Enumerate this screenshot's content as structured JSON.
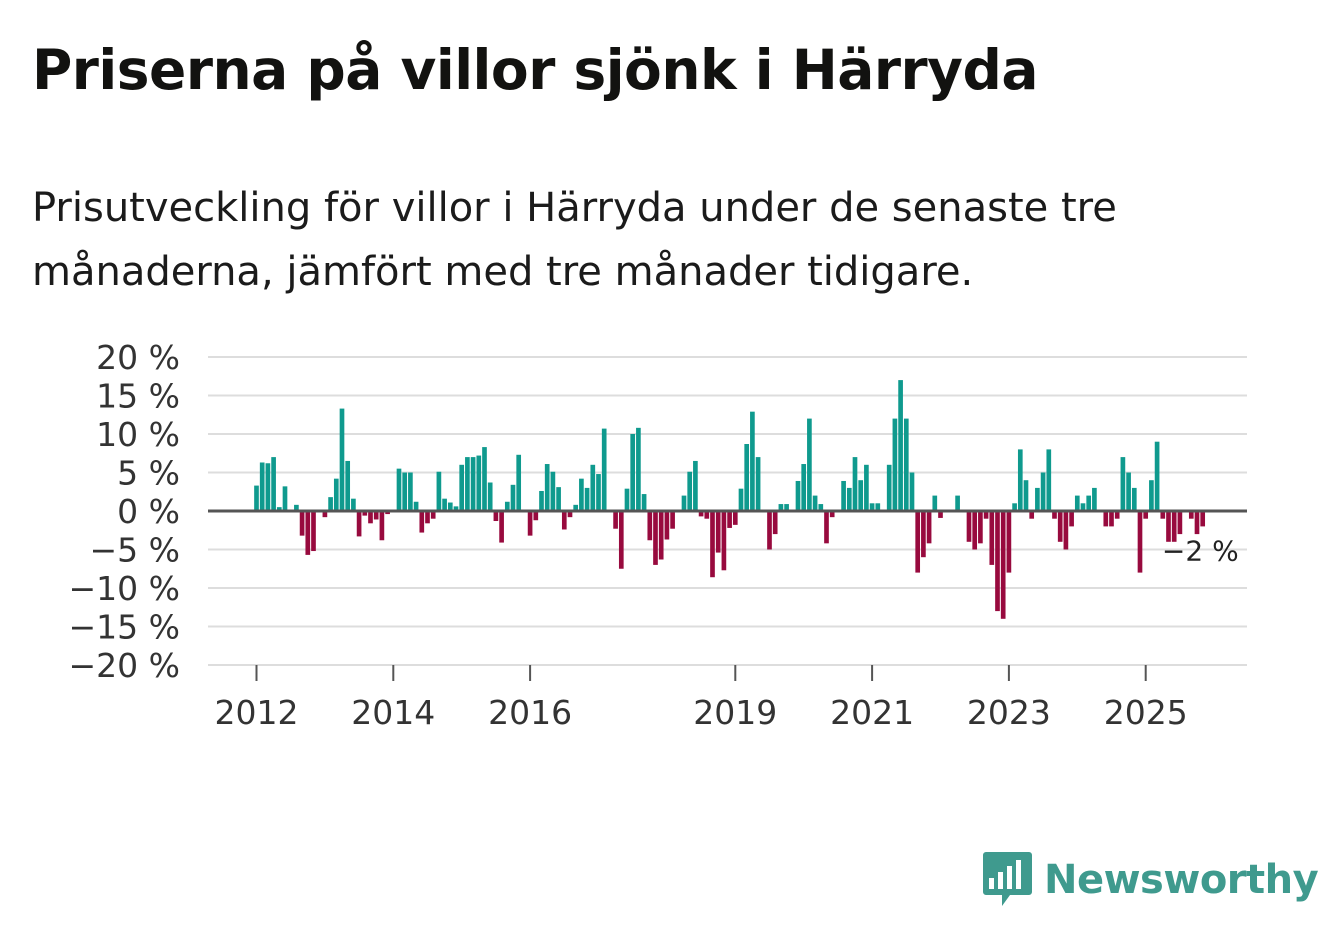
{
  "title": "Priserna på villor sjönk i Härryda",
  "subtitle": "Prisutveckling för villor i Härryda under de senaste tre månaderna, jämfört med tre månader tidigare.",
  "brand": {
    "name": "Newsworthy",
    "color": "#3f9a8e"
  },
  "colors": {
    "positive": "#0f9a8e",
    "negative": "#980a3e",
    "grid": "#dddddd",
    "zero_line": "#555555"
  },
  "chart_data": {
    "type": "bar",
    "title": "Priserna på villor sjönk i Härryda",
    "xlabel": "",
    "ylabel": "",
    "ylim": [
      -20,
      20
    ],
    "y_ticks": [
      20,
      15,
      10,
      5,
      0,
      -5,
      -10,
      -15,
      -20
    ],
    "y_tick_labels": [
      "20 %",
      "15 %",
      "10 %",
      "5 %",
      "0 %",
      "−5 %",
      "−10 %",
      "−15 %",
      "−20 %"
    ],
    "x_ticks": [
      {
        "label": "2012",
        "year": 2012
      },
      {
        "label": "2014",
        "year": 2014
      },
      {
        "label": "2016",
        "year": 2016
      },
      {
        "label": "2019",
        "year": 2019
      },
      {
        "label": "2021",
        "year": 2021
      },
      {
        "label": "2023",
        "year": 2023
      },
      {
        "label": "2025",
        "year": 2025
      }
    ],
    "start_year": 2012,
    "start_month": 1,
    "annotation": {
      "label": "−2 %",
      "value": -2
    },
    "values": [
      3.3,
      6.3,
      6.2,
      7.0,
      0.5,
      3.2,
      0,
      0.8,
      -3.2,
      -5.7,
      -5.2,
      0,
      -0.8,
      1.8,
      4.2,
      13.3,
      6.5,
      1.6,
      -3.3,
      -0.6,
      -1.6,
      -1.1,
      -3.8,
      -0.4,
      0,
      5.5,
      5.0,
      5.0,
      1.2,
      -2.8,
      -1.6,
      -1.0,
      5.1,
      1.6,
      1.1,
      0.6,
      6.0,
      7.0,
      7.0,
      7.2,
      8.3,
      3.7,
      -1.3,
      -4.1,
      1.2,
      3.4,
      7.3,
      0,
      -3.2,
      -1.2,
      2.6,
      6.1,
      5.1,
      3.1,
      -2.4,
      -0.8,
      0.8,
      4.2,
      3.0,
      6.0,
      4.8,
      10.7,
      0,
      -2.3,
      -7.5,
      2.9,
      10.0,
      10.8,
      2.2,
      -3.8,
      -7.0,
      -6.3,
      -3.7,
      -2.3,
      0,
      2.0,
      5.1,
      6.5,
      -0.7,
      -1.0,
      -8.6,
      -5.4,
      -7.7,
      -2.2,
      -1.8,
      2.9,
      8.7,
      12.9,
      7.0,
      0,
      -5.0,
      -3.0,
      0.9,
      0.9,
      0,
      3.9,
      6.1,
      12.0,
      2.0,
      0.9,
      -4.2,
      -0.8,
      0,
      3.9,
      3.0,
      7.0,
      4.0,
      6.0,
      1.0,
      1.0,
      0,
      6.0,
      12.0,
      17.0,
      12.0,
      5.0,
      -8.0,
      -6.0,
      -4.2,
      2.0,
      -0.9,
      0,
      0,
      2.0,
      0,
      -4.0,
      -5.0,
      -4.2,
      -1.0,
      -7.0,
      -13.0,
      -14.0,
      -8.0,
      1.0,
      8.0,
      4.0,
      -1.0,
      3.0,
      5.0,
      8.0,
      -1.0,
      -4.0,
      -5.0,
      -2.0,
      2.0,
      1.0,
      2.0,
      3.0,
      0,
      -2.0,
      -2.0,
      -1.0,
      7.0,
      5.0,
      3.0,
      -8.0,
      -1.0,
      4.0,
      9.0,
      -1.0,
      -4.0,
      -4.0,
      -3.0,
      0,
      -1.0,
      -3.0,
      -2.0
    ]
  }
}
